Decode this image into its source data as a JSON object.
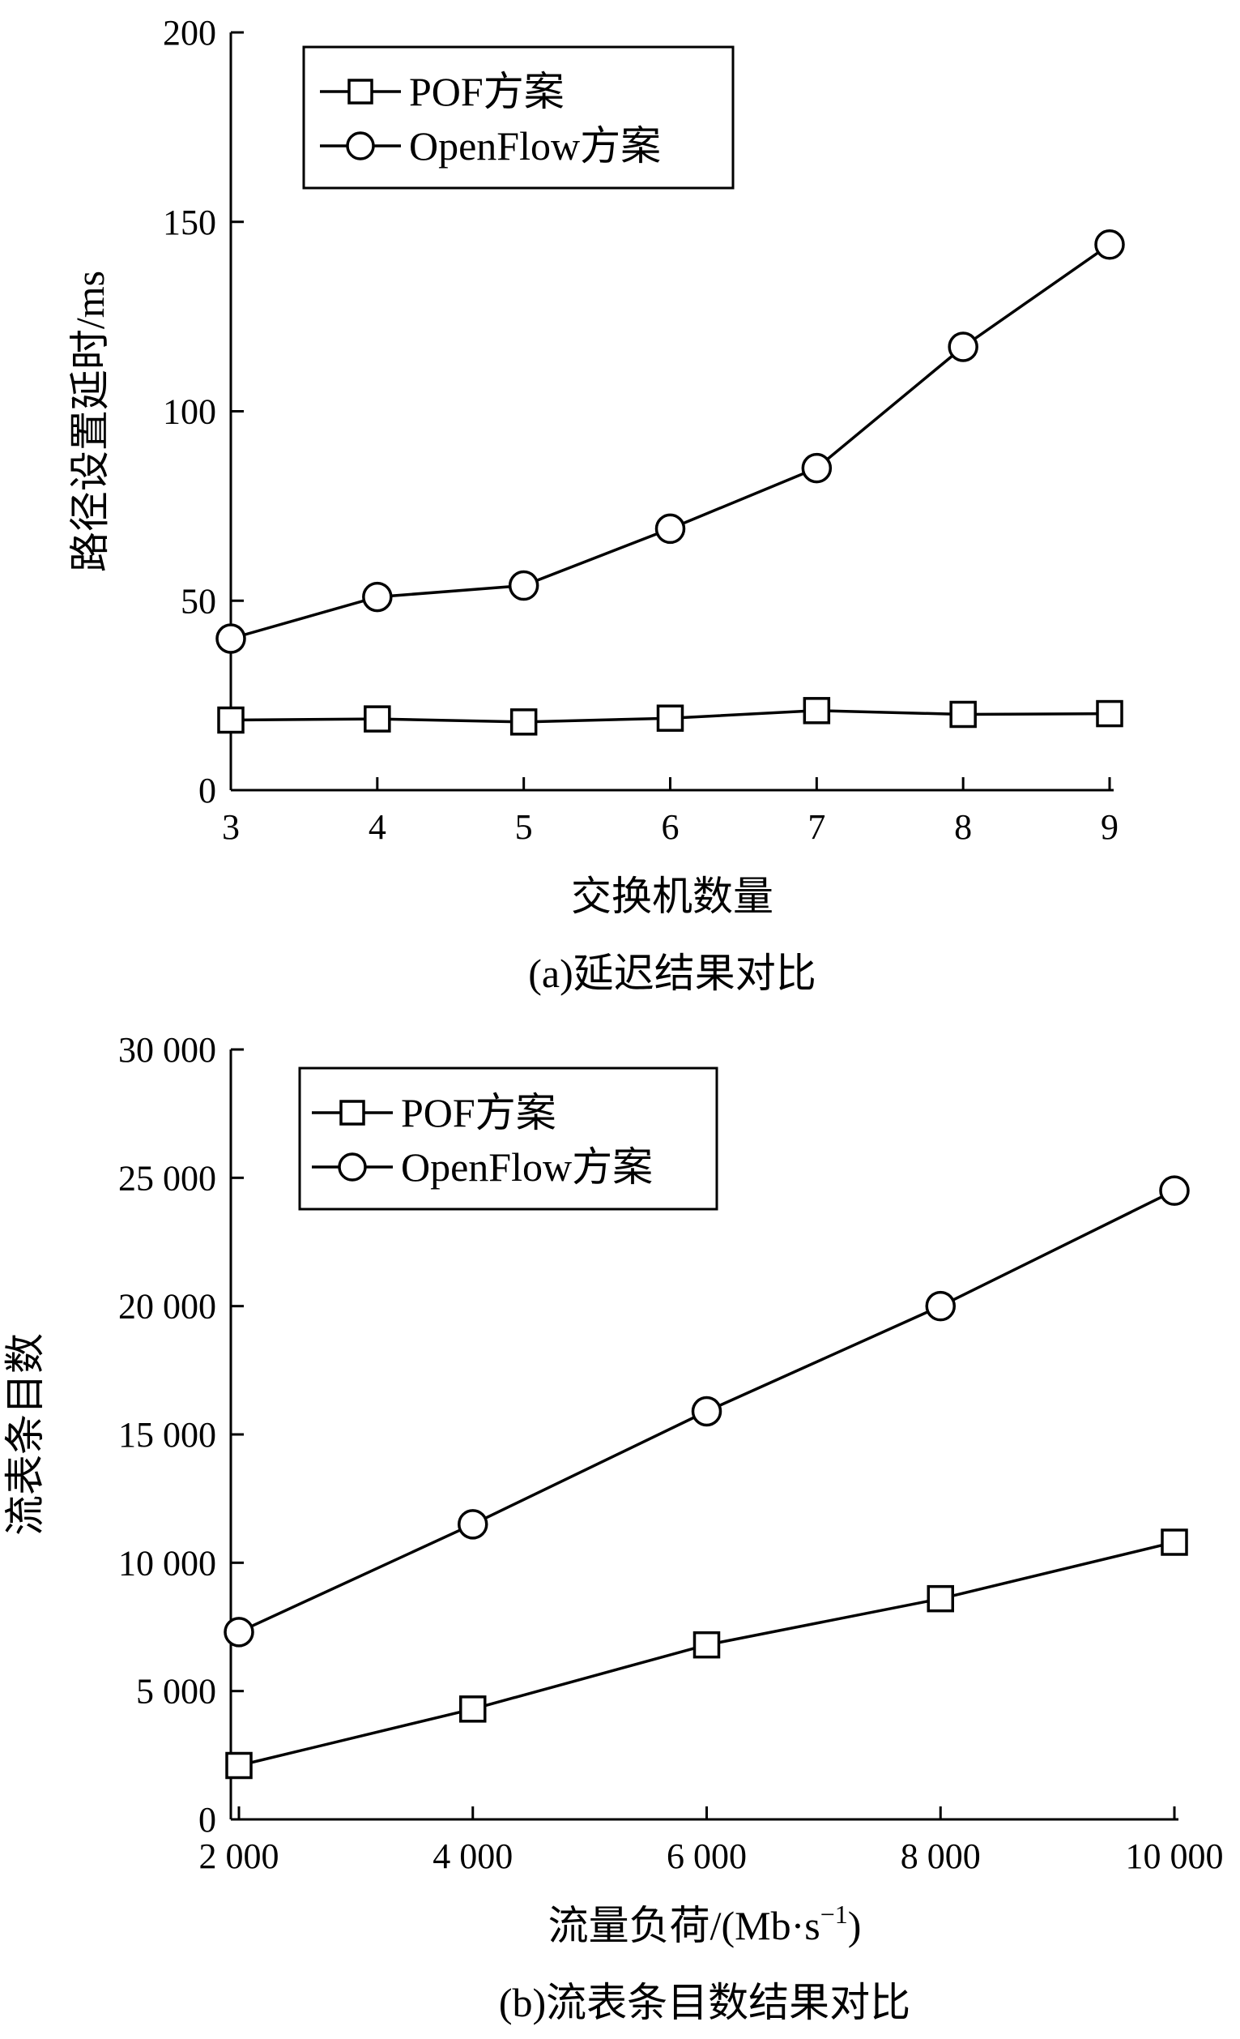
{
  "chart_data": [
    {
      "type": "line",
      "title": "",
      "caption": "(a)延迟结果对比",
      "xlabel": "交换机数量",
      "ylabel": "路径设置延时/ms",
      "x": [
        3,
        4,
        5,
        6,
        7,
        8,
        9
      ],
      "x_ticks": [
        "3",
        "4",
        "5",
        "6",
        "7",
        "8",
        "9"
      ],
      "ylim": [
        0,
        200
      ],
      "y_ticks": [
        "0",
        "50",
        "100",
        "150",
        "200"
      ],
      "y_tick_values": [
        0,
        50,
        100,
        150,
        200
      ],
      "grid": false,
      "legend": "top-left",
      "series": [
        {
          "name": "POF方案",
          "marker": "square",
          "values": [
            18.5,
            18.8,
            18.0,
            19.0,
            21.0,
            20.0,
            20.2
          ]
        },
        {
          "name": "OpenFlow方案",
          "marker": "circle",
          "values": [
            40,
            51,
            54,
            69,
            85,
            117,
            144
          ]
        }
      ]
    },
    {
      "type": "line",
      "title": "",
      "caption": "(b)流表条目数结果对比",
      "xlabel": "流量负荷/(Mb·s",
      "xlabel_sup": "−1",
      "xlabel_tail": ")",
      "ylabel": "流表条目数",
      "x": [
        2000,
        4000,
        6000,
        8000,
        10000
      ],
      "x_ticks": [
        "2 000",
        "4 000",
        "6 000",
        "8 000",
        "10 000"
      ],
      "ylim": [
        0,
        30000
      ],
      "y_ticks": [
        "0",
        "5 000",
        "10 000",
        "15 000",
        "20 000",
        "25 000",
        "30 000"
      ],
      "y_tick_values": [
        0,
        5000,
        10000,
        15000,
        20000,
        25000,
        30000
      ],
      "grid": false,
      "legend": "top-left",
      "series": [
        {
          "name": "POF方案",
          "marker": "square",
          "values": [
            2100,
            4300,
            6800,
            8600,
            10800
          ]
        },
        {
          "name": "OpenFlow方案",
          "marker": "circle",
          "values": [
            7300,
            11500,
            15900,
            20000,
            24500
          ]
        }
      ]
    }
  ]
}
